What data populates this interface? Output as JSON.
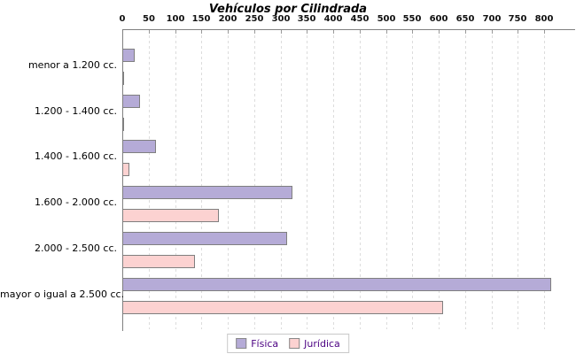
{
  "title": "Vehículos por Cilindrada",
  "chart_data": {
    "type": "bar",
    "orientation": "horizontal",
    "title": "Vehículos por Cilindrada",
    "categories": [
      "menor a 1.200 cc.",
      "1.200 - 1.400 cc.",
      "1.400 - 1.600 cc.",
      "1.600 - 2.000 cc.",
      "2.000 - 2.500 cc.",
      "mayor o igual a 2.500 cc."
    ],
    "series": [
      {
        "name": "Física",
        "color": "#b5abd7",
        "border": "#7f7f7f",
        "values": [
          20,
          30,
          60,
          320,
          310,
          810
        ]
      },
      {
        "name": "Jurídica",
        "color": "#fcd2d1",
        "border": "#7f7f7f",
        "values": [
          0,
          0,
          10,
          180,
          135,
          605
        ]
      }
    ],
    "xlim": [
      0,
      855
    ],
    "xticks": [
      0,
      50,
      100,
      150,
      200,
      250,
      300,
      350,
      400,
      450,
      500,
      550,
      600,
      650,
      700,
      750,
      800
    ],
    "grid": "vertical-dashed",
    "gridline_color": "#dcdcdc",
    "axis_color": "#808080",
    "background": "#ffffff",
    "legend_position": "bottom",
    "legend_text_color": "#4b0082"
  }
}
